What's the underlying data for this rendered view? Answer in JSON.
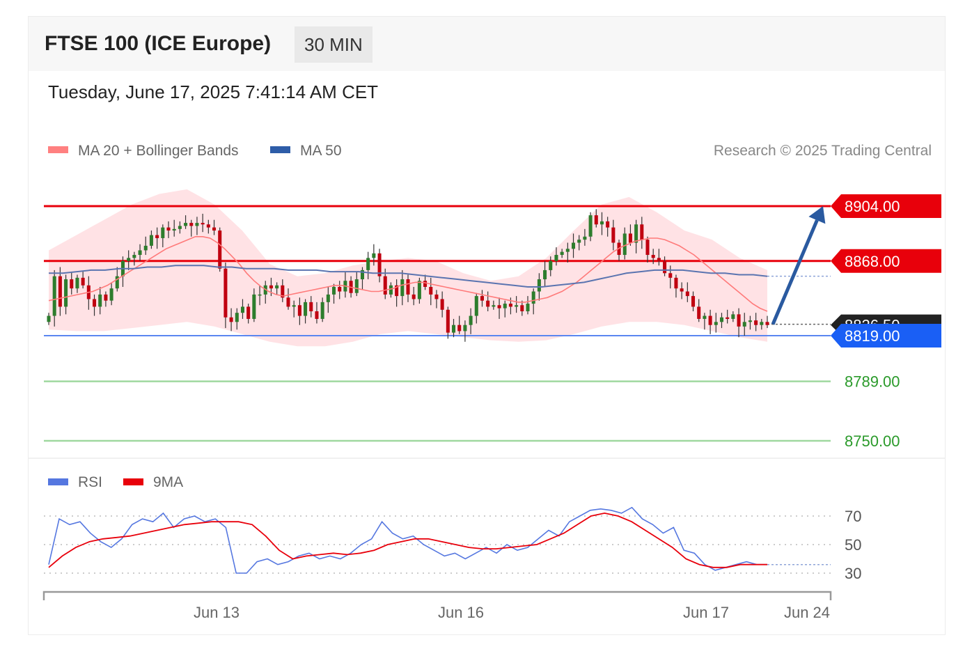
{
  "header": {
    "title": "FTSE 100 (ICE Europe)",
    "timeframe": "30 MIN",
    "datetime": "Tuesday, June 17, 2025 7:41:14 AM CET"
  },
  "legend": {
    "ma20": {
      "label": "MA 20 + Bollinger Bands",
      "color": "#ff8080"
    },
    "ma50": {
      "label": "MA 50",
      "color": "#2e5da8"
    },
    "credit": "Research © 2025 Trading Central"
  },
  "levels": [
    {
      "value": 8904,
      "label": "8904.00",
      "color": "#e8000b",
      "kind": "resistance"
    },
    {
      "value": 8868,
      "label": "8868.00",
      "color": "#e8000b",
      "kind": "resistance"
    },
    {
      "value": 8826.5,
      "label": "8826.50",
      "color": "#222222",
      "kind": "last"
    },
    {
      "value": 8819,
      "label": "8819.00",
      "color": "#1a5ff5",
      "kind": "pivot"
    },
    {
      "value": 8789,
      "label": "8789.00",
      "color": "#2a9a2a",
      "kind": "support"
    },
    {
      "value": 8750,
      "label": "8750.00",
      "color": "#2a9a2a",
      "kind": "support"
    }
  ],
  "rsi_panel": {
    "rsi_label": "RSI",
    "rsi_color": "#5577e0",
    "ma_label": "9MA",
    "ma_color": "#e8000b",
    "ticks": [
      "70",
      "50",
      "30"
    ]
  },
  "xaxis": {
    "labels": [
      "Jun 13",
      "Jun 16",
      "Jun 17",
      "Jun 24"
    ]
  },
  "chart_data": {
    "type": "candlestick",
    "ylim": [
      8740,
      8918
    ],
    "close": [
      8832,
      8858,
      8838,
      8856,
      8850,
      8857,
      8852,
      8843,
      8838,
      8846,
      8842,
      8850,
      8858,
      8868,
      8870,
      8872,
      8875,
      8878,
      8885,
      8883,
      8890,
      8888,
      8889,
      8891,
      8893,
      8891,
      8893,
      8892,
      8890,
      8888,
      8863,
      8831,
      8828,
      8834,
      8838,
      8830,
      8846,
      8846,
      8852,
      8850,
      8852,
      8844,
      8838,
      8839,
      8832,
      8841,
      8835,
      8830,
      8841,
      8846,
      8851,
      8848,
      8855,
      8847,
      8856,
      8862,
      8870,
      8873,
      8858,
      8846,
      8852,
      8845,
      8856,
      8846,
      8843,
      8855,
      8851,
      8846,
      8843,
      8836,
      8821,
      8826,
      8822,
      8826,
      8832,
      8845,
      8842,
      8838,
      8839,
      8837,
      8840,
      8838,
      8839,
      8835,
      8840,
      8848,
      8856,
      8862,
      8868,
      8872,
      8874,
      8876,
      8880,
      8882,
      8884,
      8898,
      8892,
      8894,
      8890,
      8880,
      8872,
      8886,
      8880,
      8892,
      8882,
      8872,
      8870,
      8868,
      8860,
      8857,
      8850,
      8848,
      8845,
      8838,
      8830,
      8832,
      8826,
      8828,
      8831,
      8830,
      8833,
      8825,
      8828,
      8829,
      8826,
      8828,
      8826
    ],
    "ma20": [
      8842,
      8843,
      8844,
      8845,
      8846,
      8847,
      8848,
      8850,
      8852,
      8855,
      8858,
      8861,
      8864,
      8867,
      8870,
      8873,
      8876,
      8878,
      8880,
      8882,
      8884,
      8884,
      8883,
      8880,
      8876,
      8871,
      8866,
      8860,
      8855,
      8851,
      8848,
      8846,
      8845,
      8846,
      8847,
      8848,
      8849,
      8850,
      8851,
      8852,
      8852,
      8851,
      8850,
      8849,
      8848,
      8848,
      8849,
      8850,
      8852,
      8853,
      8854,
      8854,
      8853,
      8852,
      8851,
      8850,
      8849,
      8848,
      8847,
      8846,
      8845,
      8844,
      8843,
      8842,
      8841,
      8841,
      8842,
      8843,
      8844,
      8846,
      8848,
      8851,
      8854,
      8858,
      8862,
      8866,
      8870,
      8874,
      8877,
      8879,
      8881,
      8882,
      8883,
      8883,
      8882,
      8880,
      8878,
      8875,
      8872,
      8868,
      8864,
      8860,
      8856,
      8852,
      8848,
      8844,
      8840,
      8837,
      8835
    ],
    "ma50": [
      8860,
      8860,
      8861,
      8862,
      8862,
      8863,
      8863,
      8864,
      8864,
      8865,
      8865,
      8865,
      8864,
      8864,
      8863,
      8863,
      8863,
      8862,
      8862,
      8862,
      8861,
      8861,
      8861,
      8860,
      8860,
      8860,
      8859,
      8858,
      8857,
      8856,
      8855,
      8854,
      8853,
      8852,
      8851,
      8851,
      8852,
      8853,
      8854,
      8856,
      8858,
      8860,
      8861,
      8862,
      8862,
      8862,
      8861,
      8860,
      8860,
      8859,
      8859,
      8858
    ],
    "bollinger": {
      "upper": [
        8875,
        8885,
        8895,
        8905,
        8912,
        8915,
        8905,
        8888,
        8866,
        8858,
        8860,
        8865,
        8868,
        8870,
        8868,
        8860,
        8855,
        8858,
        8870,
        8888,
        8905,
        8910,
        8900,
        8888,
        8882,
        8870,
        8862
      ],
      "lower": [
        8823,
        8822,
        8822,
        8824,
        8826,
        8828,
        8825,
        8820,
        8815,
        8812,
        8812,
        8815,
        8820,
        8822,
        8820,
        8818,
        8816,
        8815,
        8816,
        8820,
        8825,
        8828,
        8828,
        8826,
        8822,
        8818,
        8815
      ]
    },
    "forecast": {
      "from": 8826.5,
      "to": 8904
    },
    "rsi": {
      "ylim": [
        20,
        80
      ],
      "rsi": [
        36,
        68,
        64,
        66,
        58,
        52,
        48,
        54,
        64,
        68,
        66,
        72,
        62,
        68,
        70,
        66,
        68,
        62,
        30,
        30,
        38,
        40,
        36,
        38,
        42,
        44,
        40,
        42,
        40,
        44,
        50,
        54,
        66,
        58,
        54,
        56,
        50,
        46,
        42,
        44,
        40,
        44,
        48,
        44,
        50,
        46,
        48,
        54,
        60,
        56,
        66,
        70,
        74,
        75,
        74,
        72,
        76,
        68,
        64,
        58,
        62,
        46,
        44,
        36,
        32,
        34,
        36,
        38,
        36,
        36
      ],
      "ma9": [
        34,
        42,
        48,
        52,
        54,
        55,
        56,
        58,
        60,
        62,
        64,
        65,
        66,
        66,
        66,
        64,
        56,
        46,
        40,
        42,
        43,
        44,
        43,
        44,
        46,
        50,
        52,
        54,
        54,
        52,
        50,
        48,
        47,
        47,
        48,
        49,
        50,
        54,
        58,
        64,
        70,
        72,
        70,
        66,
        60,
        54,
        48,
        40,
        36,
        34,
        34,
        36,
        36,
        36
      ]
    }
  }
}
